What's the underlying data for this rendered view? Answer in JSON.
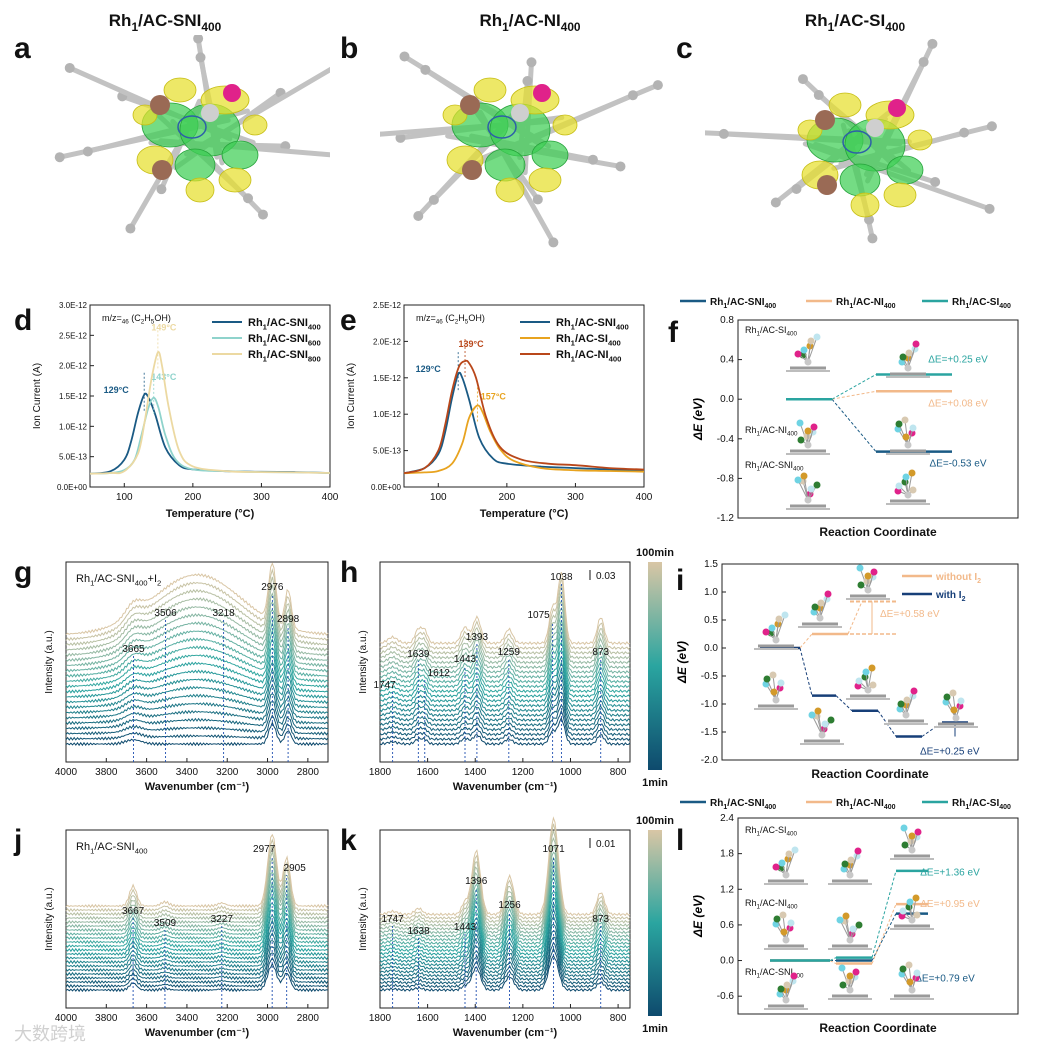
{
  "titles": {
    "a": "Rh1/AC-SNI400",
    "b": "Rh1/AC-NI400",
    "c": "Rh1/AC-SI400"
  },
  "panel_letters": [
    "a",
    "b",
    "c",
    "d",
    "e",
    "f",
    "g",
    "h",
    "i",
    "j",
    "k",
    "l"
  ],
  "colors": {
    "SNI400": "#1a5a84",
    "SNI600": "#8fd3cc",
    "SNI800": "#ecd9a2",
    "SI400_e": "#e8a31f",
    "NI400_e": "#b9471a",
    "NI400_f": "#f2b98a",
    "SI400_f": "#2aa4a0",
    "without": "#f2b98a",
    "with": "#173f78",
    "ir_start": "#0e4a6d",
    "ir_mid": "#2aa5a0",
    "ir_end": "#d9c6a5",
    "tick_line": "#1f4fb0",
    "mol_green": "#3fcf55",
    "mol_yellow": "#e6df2c",
    "atom_gray": "#b3b3b3",
    "atom_brown": "#9a6a55",
    "atom_pink": "#e0228a"
  },
  "chart_data": [
    {
      "panel": "d",
      "type": "line",
      "annotation": "m/z=46 (C2H5OH)",
      "xlabel": "Temperature (°C)",
      "ylabel": "Ion Current (A)",
      "xlim": [
        50,
        400
      ],
      "ylim": [
        0,
        3e-12
      ],
      "xticks": [
        100,
        200,
        300,
        400
      ],
      "yticks": [
        "0.0E+00",
        "5.0E-13",
        "1.0E-12",
        "1.5E-12",
        "2.0E-12",
        "2.5E-12",
        "3.0E-12"
      ],
      "series": [
        {
          "name": "Rh1/AC-SNI400",
          "peak_label": "129°C",
          "x": [
            50,
            80,
            100,
            110,
            120,
            129,
            135,
            145,
            160,
            180,
            200,
            250,
            300,
            350,
            400
          ],
          "y": [
            2.2e-13,
            2.6e-13,
            4.5e-13,
            7.5e-13,
            1.22e-12,
            1.52e-12,
            1.48e-12,
            1.2e-12,
            6.5e-13,
            3.6e-13,
            2.9e-13,
            2.6e-13,
            2.5e-13,
            2.45e-13,
            2.3e-13
          ]
        },
        {
          "name": "Rh1/AC-SNI600",
          "peak_label": "143°C",
          "x": [
            50,
            80,
            100,
            115,
            125,
            135,
            143,
            150,
            160,
            175,
            200,
            250,
            300,
            350,
            400
          ],
          "y": [
            2.2e-13,
            2.3e-13,
            2.8e-13,
            4.5e-13,
            8.5e-13,
            1.3e-12,
            1.47e-12,
            1.3e-12,
            8.5e-13,
            4.5e-13,
            2.9e-13,
            2.6e-13,
            2.45e-13,
            2.4e-13,
            2.3e-13
          ]
        },
        {
          "name": "Rh1/AC-SNI800",
          "peak_label": "149°C",
          "x": [
            50,
            80,
            100,
            120,
            130,
            140,
            149,
            155,
            165,
            180,
            200,
            250,
            300,
            350,
            400
          ],
          "y": [
            2.2e-13,
            2.3e-13,
            2.6e-13,
            5.5e-13,
            1.1e-12,
            1.8e-12,
            2.22e-12,
            2e-12,
            1.3e-12,
            6e-13,
            3.4e-13,
            2.6e-13,
            2.45e-13,
            2.4e-13,
            2.3e-13
          ]
        }
      ]
    },
    {
      "panel": "e",
      "type": "line",
      "annotation": "m/z=46 (C2H5OH)",
      "xlabel": "Temperature (°C)",
      "ylabel": "Ion Current (A)",
      "xlim": [
        50,
        400
      ],
      "ylim": [
        0,
        2.5e-12
      ],
      "xticks": [
        100,
        200,
        300,
        400
      ],
      "yticks": [
        "0.0E+00",
        "5.0E-13",
        "1.0E-12",
        "1.5E-12",
        "2.0E-12",
        "2.5E-12"
      ],
      "series": [
        {
          "name": "Rh1/AC-SNI400",
          "peak_label": "129°C",
          "x": [
            50,
            80,
            100,
            110,
            120,
            129,
            135,
            145,
            160,
            180,
            200,
            250,
            300,
            350,
            400
          ],
          "y": [
            1.9e-13,
            2.6e-13,
            4.5e-13,
            7.5e-13,
            1.22e-12,
            1.55e-12,
            1.5e-12,
            1.2e-12,
            6.7e-13,
            3.9e-13,
            3.2e-13,
            2.8e-13,
            2.6e-13,
            2.4e-13,
            2.2e-13
          ]
        },
        {
          "name": "Rh1/AC-SI400",
          "peak_label": "157°C",
          "x": [
            50,
            80,
            100,
            120,
            135,
            145,
            157,
            165,
            175,
            190,
            210,
            250,
            300,
            350,
            400
          ],
          "y": [
            1.9e-13,
            2e-13,
            2.2e-13,
            3.2e-13,
            6e-13,
            9.5e-13,
            1.12e-12,
            1.02e-12,
            7.8e-13,
            5.2e-13,
            3.6e-13,
            2.6e-13,
            2.3e-13,
            2.2e-13,
            2.1e-13
          ]
        },
        {
          "name": "Rh1/AC-NI400",
          "peak_label": "139°C",
          "x": [
            50,
            80,
            100,
            110,
            120,
            130,
            139,
            145,
            155,
            170,
            190,
            220,
            260,
            300,
            350,
            400
          ],
          "y": [
            1.9e-13,
            2.6e-13,
            5e-13,
            8.5e-13,
            1.32e-12,
            1.65e-12,
            1.73e-12,
            1.7e-12,
            1.5e-12,
            9.5e-13,
            5.5e-13,
            3.8e-13,
            3.2e-13,
            3e-13,
            2.6e-13,
            2.4e-13
          ]
        }
      ]
    },
    {
      "panel": "f",
      "type": "energy-diagram",
      "xlabel": "Reaction Coordinate",
      "ylabel": "ΔE (eV)",
      "ylim": [
        -1.2,
        0.8
      ],
      "yticks": [
        0.8,
        0.4,
        0.0,
        -0.4,
        -0.8,
        -1.2
      ],
      "legend": [
        "Rh1/AC-SNI400",
        "Rh1/AC-NI400",
        "Rh1/AC-SI400"
      ],
      "system_labels": [
        "Rh1/AC-SI400",
        "Rh1/AC-NI400",
        "Rh1/AC-SNI400"
      ],
      "series": [
        {
          "name": "Rh1/AC-SNI400",
          "values": [
            0.0,
            -0.53
          ],
          "label": "ΔE=-0.53 eV"
        },
        {
          "name": "Rh1/AC-NI400",
          "values": [
            0.0,
            0.08
          ],
          "label": "ΔE=+0.08 eV"
        },
        {
          "name": "Rh1/AC-SI400",
          "values": [
            0.0,
            0.25
          ],
          "label": "ΔE=+0.25 eV"
        }
      ]
    },
    {
      "panel": "g",
      "type": "line",
      "annotation": "Rh1/AC-SNI400+I2",
      "xlabel": "Wavenumber (cm⁻¹)",
      "ylabel": "Intensity (a.u.)",
      "xlim": [
        4000,
        2700
      ],
      "xticks": [
        4000,
        3800,
        3600,
        3400,
        3200,
        3000,
        2800
      ],
      "peaks": [
        3665,
        3506,
        3218,
        2976,
        2898
      ]
    },
    {
      "panel": "h",
      "type": "line",
      "xlabel": "Wavenumber (cm⁻¹)",
      "ylabel": "Intensity (a.u.)",
      "xlim": [
        1800,
        750
      ],
      "xticks": [
        1800,
        1600,
        1400,
        1200,
        1000,
        800
      ],
      "peaks": [
        1747,
        1639,
        1612,
        1443,
        1393,
        1259,
        1075,
        1038,
        873
      ],
      "scale_bar": "0.03",
      "colorbar": {
        "top": "100min",
        "bottom": "1min"
      }
    },
    {
      "panel": "i",
      "type": "energy-diagram",
      "xlabel": "Reaction Coordinate",
      "ylabel": "ΔE (eV)",
      "ylim": [
        -2.0,
        1.5
      ],
      "yticks": [
        1.5,
        1.0,
        0.5,
        0.0,
        -0.5,
        -1.0,
        -1.5,
        -2.0
      ],
      "legend": [
        "without I2",
        "with I2"
      ],
      "series": [
        {
          "name": "without I2",
          "values": [
            0.0,
            0.25,
            0.83,
            0.25
          ],
          "label": "ΔE=+0.58 eV"
        },
        {
          "name": "with I2",
          "values": [
            0.0,
            -0.85,
            -1.12,
            -1.58,
            -1.33
          ],
          "label": "ΔE=+0.25 eV"
        }
      ]
    },
    {
      "panel": "j",
      "type": "line",
      "annotation": "Rh1/AC-SNI400",
      "xlabel": "Wavenumber (cm⁻¹)",
      "ylabel": "Intensity (a.u.)",
      "xlim": [
        4000,
        2700
      ],
      "xticks": [
        4000,
        3800,
        3600,
        3400,
        3200,
        3000,
        2800
      ],
      "peaks": [
        3667,
        3509,
        3227,
        2977,
        2905
      ]
    },
    {
      "panel": "k",
      "type": "line",
      "xlabel": "Wavenumber (cm⁻¹)",
      "ylabel": "Intensity (a.u.)",
      "xlim": [
        1800,
        750
      ],
      "xticks": [
        1800,
        1600,
        1400,
        1200,
        1000,
        800
      ],
      "peaks": [
        1747,
        1638,
        1443,
        1396,
        1256,
        1071,
        873
      ],
      "scale_bar": "0.01",
      "colorbar": {
        "top": "100min",
        "bottom": "1min"
      }
    },
    {
      "panel": "l",
      "type": "energy-diagram",
      "xlabel": "Reaction Coordinate",
      "ylabel": "ΔE (eV)",
      "ylim": [
        -0.9,
        2.4
      ],
      "yticks": [
        2.4,
        1.8,
        1.2,
        0.6,
        0.0,
        -0.6
      ],
      "legend": [
        "Rh1/AC-SNI400",
        "Rh1/AC-NI400",
        "Rh1/AC-SI400"
      ],
      "system_labels": [
        "Rh1/AC-SI400",
        "Rh1/AC-NI400",
        "Rh1/AC-SNI400"
      ],
      "series": [
        {
          "name": "Rh1/AC-SNI400",
          "values": [
            0.0,
            0.0,
            0.79
          ],
          "label": "ΔE=+0.79 eV"
        },
        {
          "name": "Rh1/AC-NI400",
          "values": [
            0.0,
            0.0,
            0.95
          ],
          "label": "ΔE=+0.95 eV"
        },
        {
          "name": "Rh1/AC-SI400",
          "values": [
            0.0,
            0.15,
            1.51
          ],
          "label": "ΔE=+1.36 eV"
        }
      ]
    }
  ],
  "watermark": "大数跨境"
}
